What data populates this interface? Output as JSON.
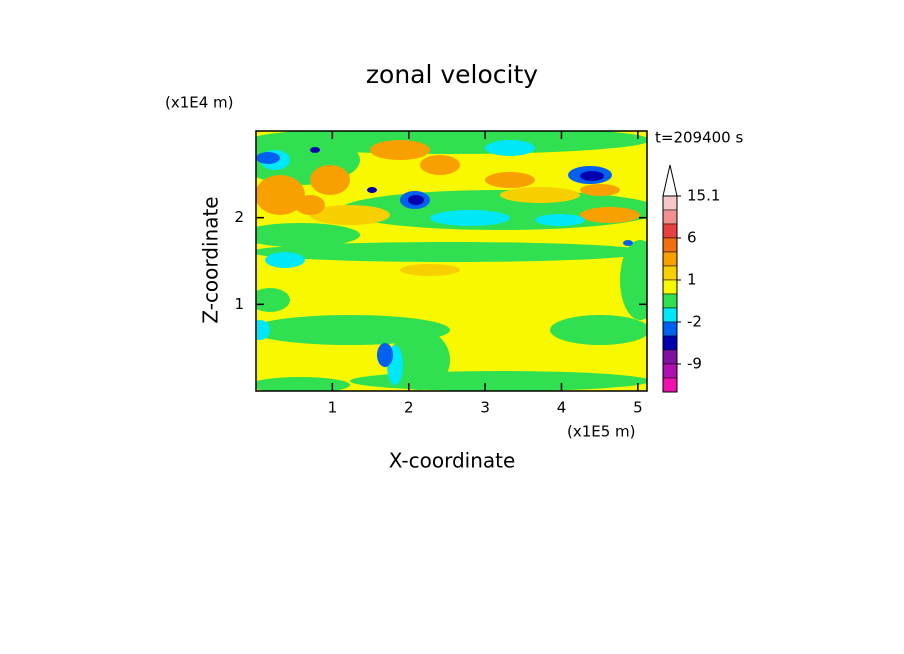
{
  "chart_data": {
    "type": "contour",
    "title": "zonal velocity",
    "x_label": "X-coordinate",
    "y_label": "Z-coordinate",
    "x_unit": "(x1E5 m)",
    "y_unit": "(x1E4 m)",
    "annotation": "t=209400 s",
    "xlim": [
      0,
      5.12
    ],
    "ylim": [
      0,
      3
    ],
    "xticks": [
      1,
      2,
      3,
      4,
      5
    ],
    "yticks": [
      1,
      2
    ],
    "colorbar": {
      "levels": [
        15.1,
        12,
        9,
        6,
        3,
        2,
        1,
        0,
        -1,
        -2,
        -4,
        -6,
        -9,
        -12,
        -15
      ],
      "colors": [
        "#f8c8c8",
        "#f09090",
        "#e84040",
        "#f07010",
        "#f8a000",
        "#f8d000",
        "#f8f800",
        "#30e050",
        "#00e8f8",
        "#0060f0",
        "#0000b0",
        "#8010a0",
        "#b010b0",
        "#f010b0"
      ],
      "ticks": [
        15.1,
        6,
        1,
        -2,
        -9
      ]
    }
  }
}
